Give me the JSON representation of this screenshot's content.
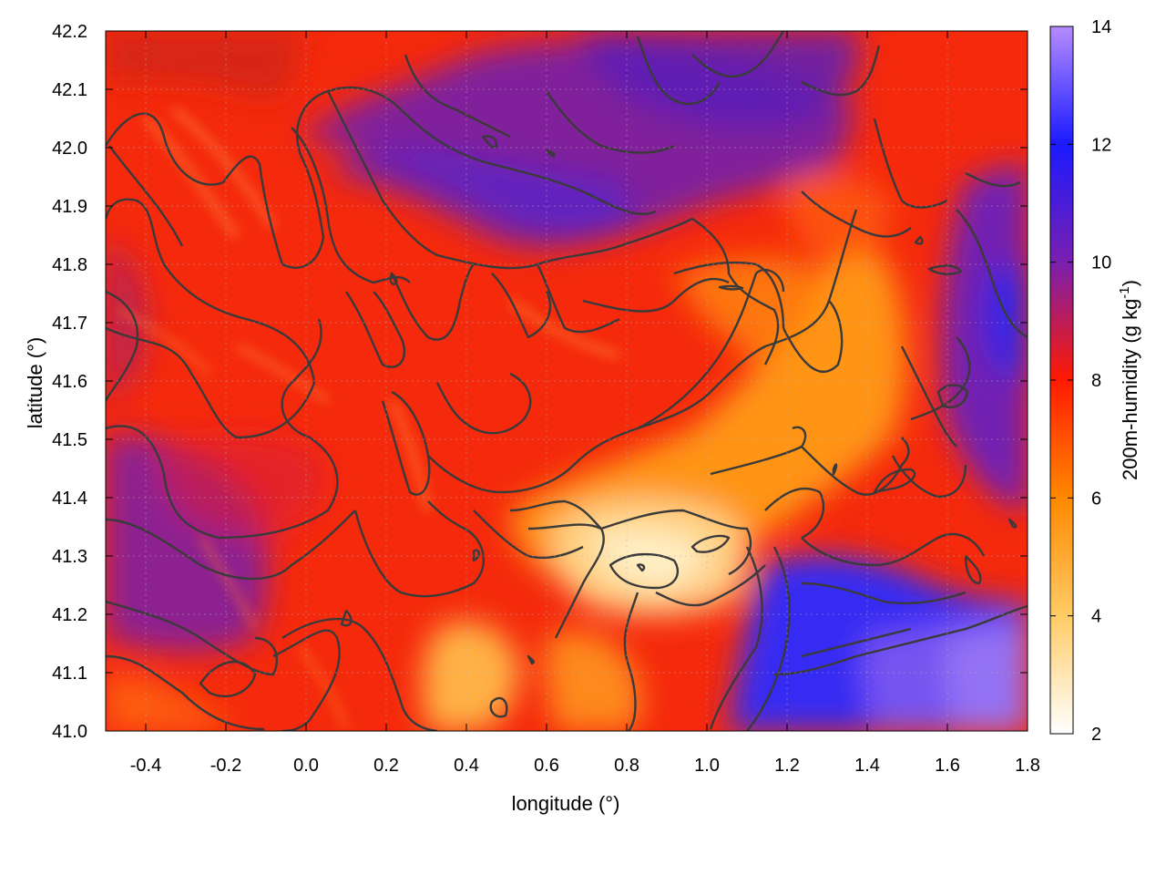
{
  "chart_data": {
    "type": "heatmap",
    "title": "",
    "xlabel": "longitude (°)",
    "ylabel": "latitude (°)",
    "xlim": [
      -0.5,
      1.8
    ],
    "ylim": [
      41.0,
      42.2
    ],
    "xticks": [
      -0.4,
      -0.2,
      0.0,
      0.2,
      0.4,
      0.6,
      0.8,
      1.0,
      1.2,
      1.4,
      1.6,
      1.8
    ],
    "xtick_labels": [
      "-0.4",
      "-0.2",
      "0.0",
      "0.2",
      "0.4",
      "0.6",
      "0.8",
      "1.0",
      "1.2",
      "1.4",
      "1.6",
      "1.8"
    ],
    "yticks": [
      41.0,
      41.1,
      41.2,
      41.3,
      41.4,
      41.5,
      41.6,
      41.7,
      41.8,
      41.9,
      42.0,
      42.1,
      42.2
    ],
    "ytick_labels": [
      "41.0",
      "41.1",
      "41.2",
      "41.3",
      "41.4",
      "41.5",
      "41.6",
      "41.7",
      "41.8",
      "41.9",
      "42.0",
      "42.1",
      "42.2"
    ],
    "grid": true,
    "colorbar": {
      "label_main": "200m-humidity (g kg",
      "label_sup": "-1",
      "label_end": ")",
      "range": [
        2,
        14
      ],
      "ticks": [
        2,
        4,
        6,
        8,
        10,
        12,
        14
      ],
      "tick_labels": [
        "2",
        "4",
        "6",
        "8",
        "10",
        "12",
        "14"
      ],
      "colormap": [
        {
          "value": 2,
          "color": "#ffffff"
        },
        {
          "value": 4,
          "color": "#ffcc66"
        },
        {
          "value": 6,
          "color": "#ff8800"
        },
        {
          "value": 8,
          "color": "#ff1a00"
        },
        {
          "value": 10,
          "color": "#7a1fb0"
        },
        {
          "value": 12,
          "color": "#1a1aff"
        },
        {
          "value": 14,
          "color": "#b58cff"
        }
      ]
    },
    "field_features": [
      {
        "region": "moist band",
        "lon": 0.4,
        "lat": 41.88,
        "humidity": 9.5
      },
      {
        "region": "moist west",
        "lon": -0.4,
        "lat": 41.35,
        "humidity": 9.3
      },
      {
        "region": "moist north",
        "lon": 0.95,
        "lat": 42.13,
        "humidity": 9.5
      },
      {
        "region": "dry core",
        "lon": 0.85,
        "lat": 41.3,
        "humidity": 3.0
      },
      {
        "region": "dry plume",
        "lon": 1.3,
        "lat": 41.6,
        "humidity": 5.5
      },
      {
        "region": "dry south",
        "lon": 0.45,
        "lat": 41.1,
        "humidity": 4.5
      },
      {
        "region": "sea southeast",
        "lon": 1.55,
        "lat": 41.12,
        "humidity": 12.3
      },
      {
        "region": "sea east",
        "lon": 1.75,
        "lat": 41.7,
        "humidity": 11.0
      }
    ]
  }
}
